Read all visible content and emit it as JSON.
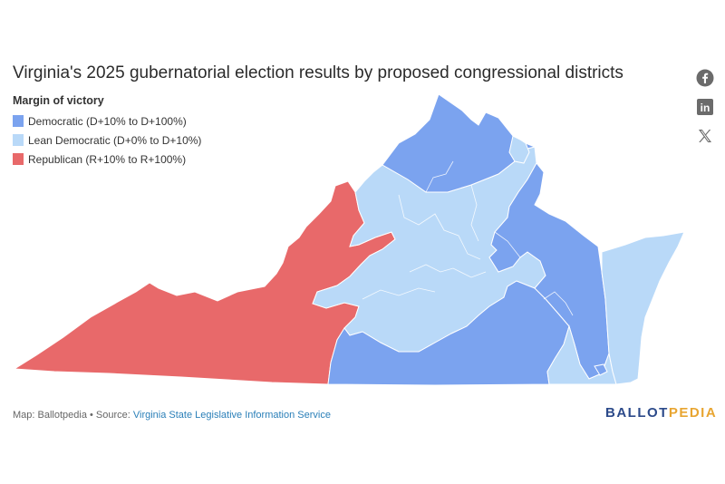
{
  "title": "Virginia's 2025 gubernatorial election results by proposed congressional districts",
  "legend": {
    "title": "Margin of victory",
    "items": [
      {
        "label": "Democratic (D+10% to D+100%)",
        "color": "#7ba3ef"
      },
      {
        "label": "Lean Democratic (D+0% to D+10%)",
        "color": "#b9d9f8"
      },
      {
        "label": "Republican (R+10% to R+100%)",
        "color": "#e8696a"
      }
    ]
  },
  "social": {
    "icons": [
      "facebook-icon",
      "linkedin-icon",
      "x-icon"
    ],
    "linkedin_glyph": "in",
    "x_glyph": "𝕏"
  },
  "footer": {
    "prefix": "Map: Ballotpedia • Source: ",
    "source_link": "Virginia State Legislative Information Service"
  },
  "brand": {
    "part1": "BALLOT",
    "part2": "PEDIA"
  },
  "colors": {
    "democratic": "#7ba3ef",
    "lean_democratic": "#b9d9f8",
    "republican": "#e8696a",
    "border": "#ffffff"
  }
}
